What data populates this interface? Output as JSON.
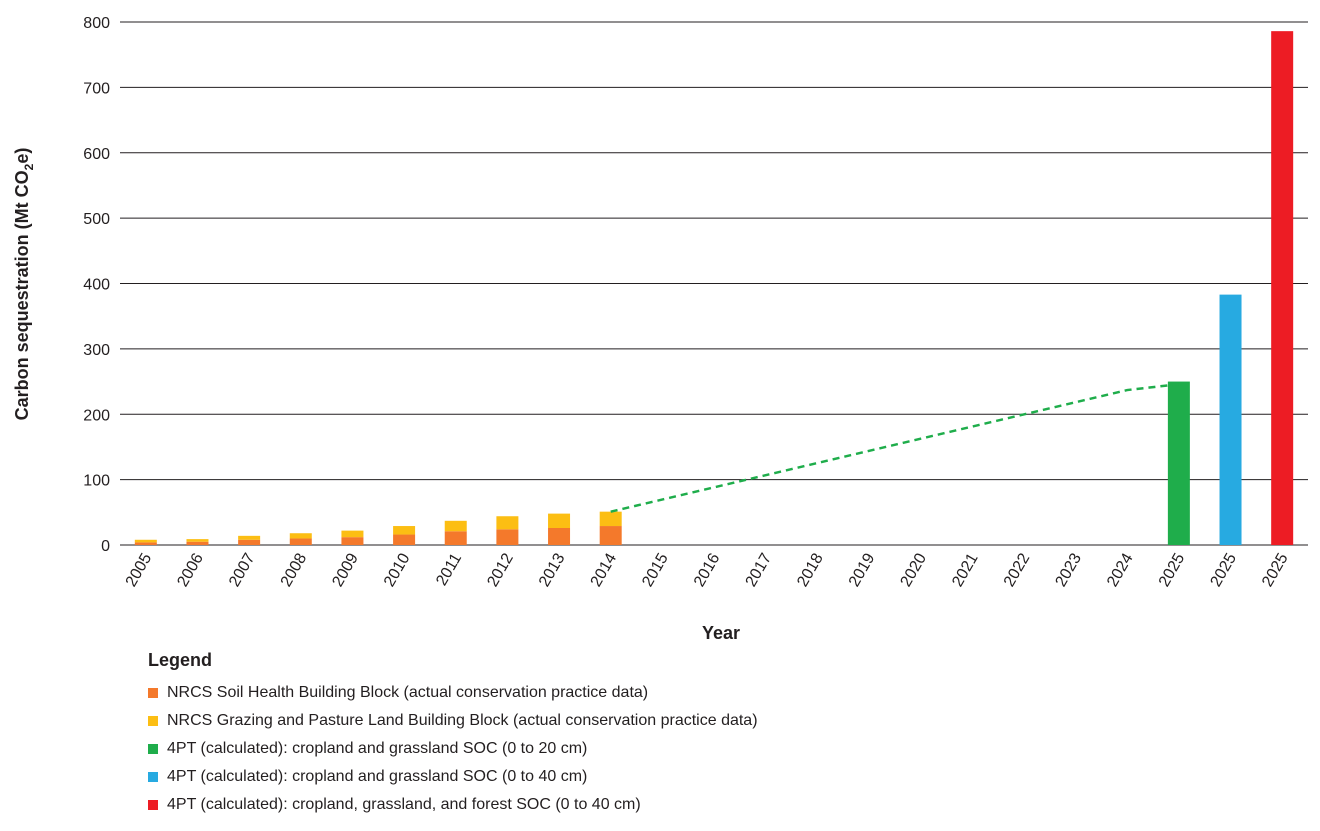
{
  "chart_data": {
    "type": "bar",
    "title": "",
    "xlabel": "Year",
    "ylabel": "Carbon sequestration (Mt CO",
    "ylabel_sub": "2",
    "ylabel_end": "e)",
    "ylim": [
      0,
      800
    ],
    "yticks": [
      0,
      100,
      200,
      300,
      400,
      500,
      600,
      700,
      800
    ],
    "grid": true,
    "categories": [
      "2005",
      "2006",
      "2007",
      "2008",
      "2009",
      "2010",
      "2011",
      "2012",
      "2013",
      "2014",
      "2015",
      "2016",
      "2017",
      "2018",
      "2019",
      "2020",
      "2021",
      "2022",
      "2023",
      "2024",
      "2025",
      "2025",
      "2025"
    ],
    "series": [
      {
        "name": "NRCS Soil Health Building Block (actual conservation practice data)",
        "color": "#f4792b",
        "kind": "bar-stack",
        "values": [
          4,
          5,
          8,
          10,
          12,
          16,
          21,
          24,
          26,
          29,
          null,
          null,
          null,
          null,
          null,
          null,
          null,
          null,
          null,
          null,
          null,
          null,
          null
        ]
      },
      {
        "name": "NRCS Grazing and Pasture Land Building Block (actual conservation practice data)",
        "color": "#fcbe13",
        "kind": "bar-stack",
        "values": [
          4,
          4,
          6,
          8,
          10,
          13,
          16,
          20,
          22,
          22,
          null,
          null,
          null,
          null,
          null,
          null,
          null,
          null,
          null,
          null,
          null,
          null,
          null
        ]
      },
      {
        "name": "4PT (calculated): cropland and grassland SOC (0 to 20 cm)",
        "color": "#1fad4b",
        "kind": "bar",
        "values": [
          null,
          null,
          null,
          null,
          null,
          null,
          null,
          null,
          null,
          null,
          null,
          null,
          null,
          null,
          null,
          null,
          null,
          null,
          null,
          null,
          250,
          null,
          null
        ]
      },
      {
        "name": "4PT (calculated): cropland and grassland SOC (0 to 40 cm)",
        "color": "#27aae1",
        "kind": "bar",
        "values": [
          null,
          null,
          null,
          null,
          null,
          null,
          null,
          null,
          null,
          null,
          null,
          null,
          null,
          null,
          null,
          null,
          null,
          null,
          null,
          null,
          null,
          383,
          null
        ]
      },
      {
        "name": "4PT (calculated): cropland, grassland, and forest SOC (0 to 40 cm)",
        "color": "#ed1c24",
        "kind": "bar",
        "values": [
          null,
          null,
          null,
          null,
          null,
          null,
          null,
          null,
          null,
          null,
          null,
          null,
          null,
          null,
          null,
          null,
          null,
          null,
          null,
          null,
          null,
          null,
          786
        ]
      },
      {
        "name": "",
        "color": "#1fad4b",
        "kind": "dashed-line",
        "points": [
          [
            9,
            51
          ],
          [
            19,
            237
          ],
          [
            20,
            246
          ]
        ]
      }
    ],
    "legend_title": "Legend",
    "legend_position": "bottom-left"
  }
}
